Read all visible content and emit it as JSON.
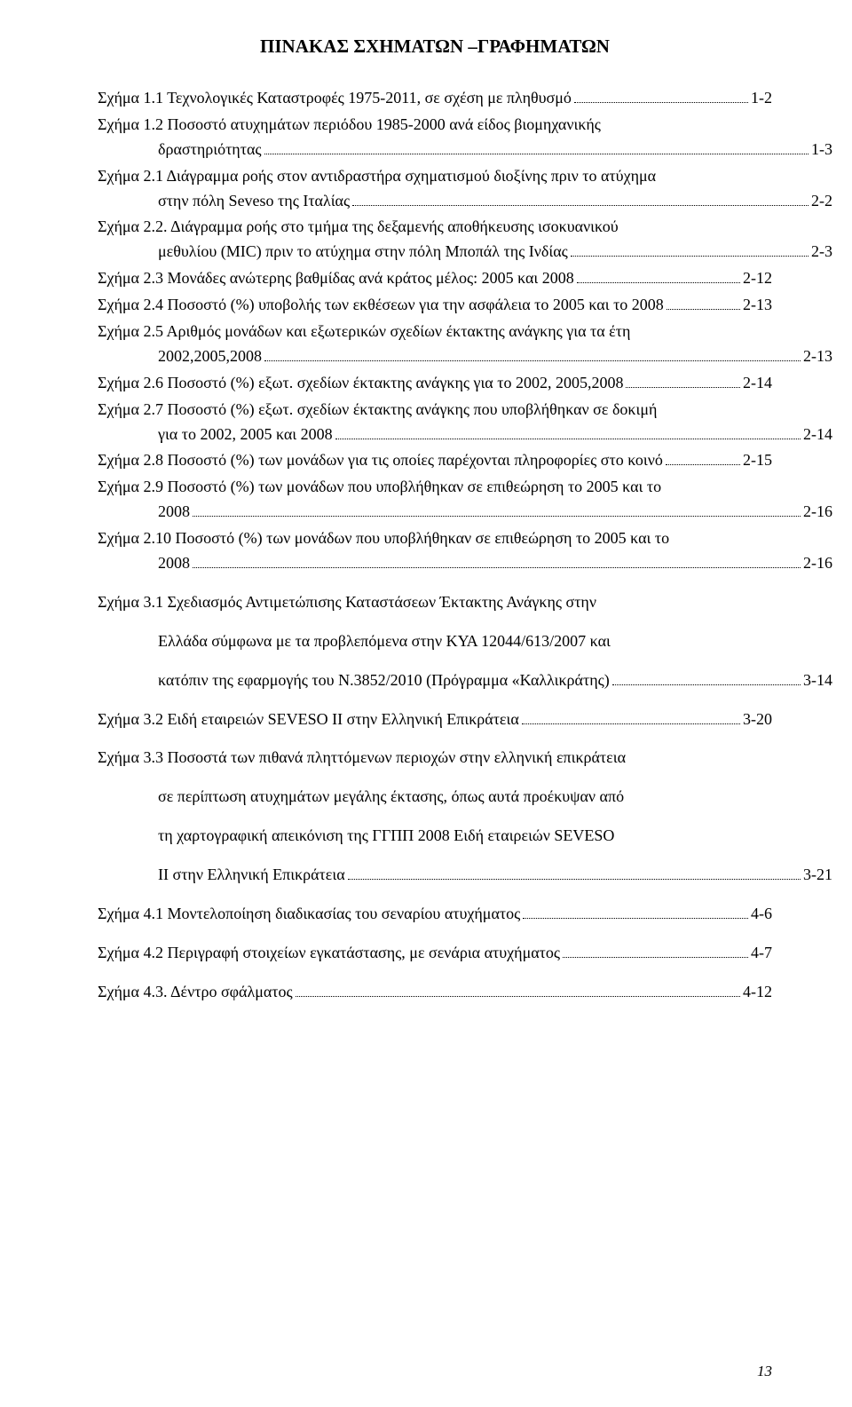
{
  "title": "ΠΙΝΑΚΑΣ ΣΧΗΜΑΤΩΝ –ΓΡΑΦΗΜΑΤΩΝ",
  "page_number": "13",
  "entries": [
    {
      "label": "Σχήμα 1.1",
      "lines": [
        "Τεχνολογικές Καταστροφές 1975-2011, σε σχέση με πληθυσμό"
      ],
      "page": "1-2",
      "indent": false,
      "spaced": false
    },
    {
      "label": "Σχήμα 1.2",
      "lines": [
        "Ποσοστό ατυχημάτων περιόδου 1985-2000 ανά είδος βιομηχανικής",
        "δραστηριότητας"
      ],
      "page": "1-3",
      "indent": true,
      "spaced": false
    },
    {
      "label": "Σχήμα 2.1",
      "lines": [
        "Διάγραμμα ροής στον αντιδραστήρα σχηματισμού διοξίνης πριν το ατύχημα",
        "στην πόλη Seveso της Ιταλίας"
      ],
      "page": "2-2",
      "indent": true,
      "spaced": false
    },
    {
      "label": "Σχήμα 2.2.",
      "lines": [
        "Διάγραμμα ροής στο τμήμα της δεξαμενής αποθήκευσης ισοκυανικού",
        "μεθυλίου (MIC) πριν το ατύχημα στην πόλη Μποπάλ της Ινδίας"
      ],
      "page": "2-3",
      "indent": true,
      "spaced": false
    },
    {
      "label": "Σχήμα 2.3",
      "lines": [
        "Μονάδες ανώτερης βαθμίδας ανά κράτος μέλος: 2005 και 2008"
      ],
      "page": "2-12",
      "indent": false,
      "spaced": false
    },
    {
      "label": "Σχήμα 2.4",
      "lines": [
        "Ποσοστό (%) υποβολής των εκθέσεων για την ασφάλεια το 2005 και το 2008"
      ],
      "page": "2-13",
      "indent": false,
      "spaced": false
    },
    {
      "label": "Σχήμα 2.5",
      "lines": [
        "Αριθμός μονάδων και εξωτερικών σχεδίων έκτακτης ανάγκης για τα έτη",
        "2002,2005,2008"
      ],
      "page": "2-13",
      "indent": true,
      "spaced": false
    },
    {
      "label": "Σχήμα 2.6",
      "lines": [
        "Ποσοστό (%) εξωτ. σχεδίων έκτακτης ανάγκης για το 2002, 2005,2008"
      ],
      "page": "2-14",
      "indent": false,
      "spaced": false
    },
    {
      "label": "Σχήμα 2.7",
      "lines": [
        "Ποσοστό (%) εξωτ. σχεδίων έκτακτης ανάγκης που υποβλήθηκαν σε  δοκιμή",
        "για το 2002, 2005 και 2008"
      ],
      "page": "2-14",
      "indent": true,
      "spaced": false
    },
    {
      "label": "Σχήμα 2.8",
      "lines": [
        "Ποσοστό (%) των μονάδων για τις οποίες παρέχονται πληροφορίες στο κοινό"
      ],
      "page": "2-15",
      "indent": false,
      "spaced": false
    },
    {
      "label": "Σχήμα 2.9",
      "lines": [
        "Ποσοστό (%) των μονάδων  που υποβλήθηκαν σε επιθεώρηση το 2005 και το",
        "2008"
      ],
      "page": "2-16",
      "indent": true,
      "spaced": false
    },
    {
      "label": "Σχήμα 2.10",
      "lines": [
        "Ποσοστό (%) των μονάδων  που υποβλήθηκαν σε επιθεώρηση το 2005 και το",
        "2008"
      ],
      "page": "2-16",
      "indent": true,
      "spaced": false
    },
    {
      "label": "Σχήμα 3.1",
      "lines": [
        "Σχεδιασμός Αντιμετώπισης Καταστάσεων Έκτακτης Ανάγκης στην",
        "Ελλάδα σύμφωνα με τα προβλεπόμενα στην ΚΥΑ 12044/613/2007 και",
        "κατόπιν της εφαρμογής του Ν.3852/2010 (Πρόγραμμα «Καλλικράτης)"
      ],
      "page": "3-14",
      "indent": true,
      "spaced": true
    },
    {
      "label": "Σχήμα 3.2",
      "lines": [
        "Ειδή εταιρειών SEVESO II στην Ελληνική Επικράτεια"
      ],
      "page": "3-20",
      "indent": false,
      "spaced": true
    },
    {
      "label": "Σχήμα 3.3",
      "lines": [
        "Ποσοστά των πιθανά πληττόμενων περιοχών στην ελληνική επικράτεια",
        "σε περίπτωση ατυχημάτων μεγάλης έκτασης, όπως αυτά προέκυψαν από",
        "τη χαρτογραφική απεικόνιση της ΓΓΠΠ 2008 Ειδή εταιρειών SEVESO",
        "II στην Ελληνική Επικράτεια"
      ],
      "page": "3-21",
      "indent": true,
      "spaced": true
    },
    {
      "label": "Σχήμα 4.1",
      "lines": [
        "Μοντελοποίηση διαδικασίας του σεναρίου ατυχήματος"
      ],
      "page": "4-6",
      "indent": false,
      "spaced": true
    },
    {
      "label": "Σχήμα 4.2",
      "lines": [
        "Περιγραφή στοιχείων εγκατάστασης, με σενάρια ατυχήματος"
      ],
      "page": "4-7",
      "indent": false,
      "spaced": true
    },
    {
      "label": "Σχήμα 4.3.",
      "lines": [
        "Δέντρο σφάλματος"
      ],
      "page": "4-12",
      "indent": false,
      "spaced": true
    }
  ]
}
